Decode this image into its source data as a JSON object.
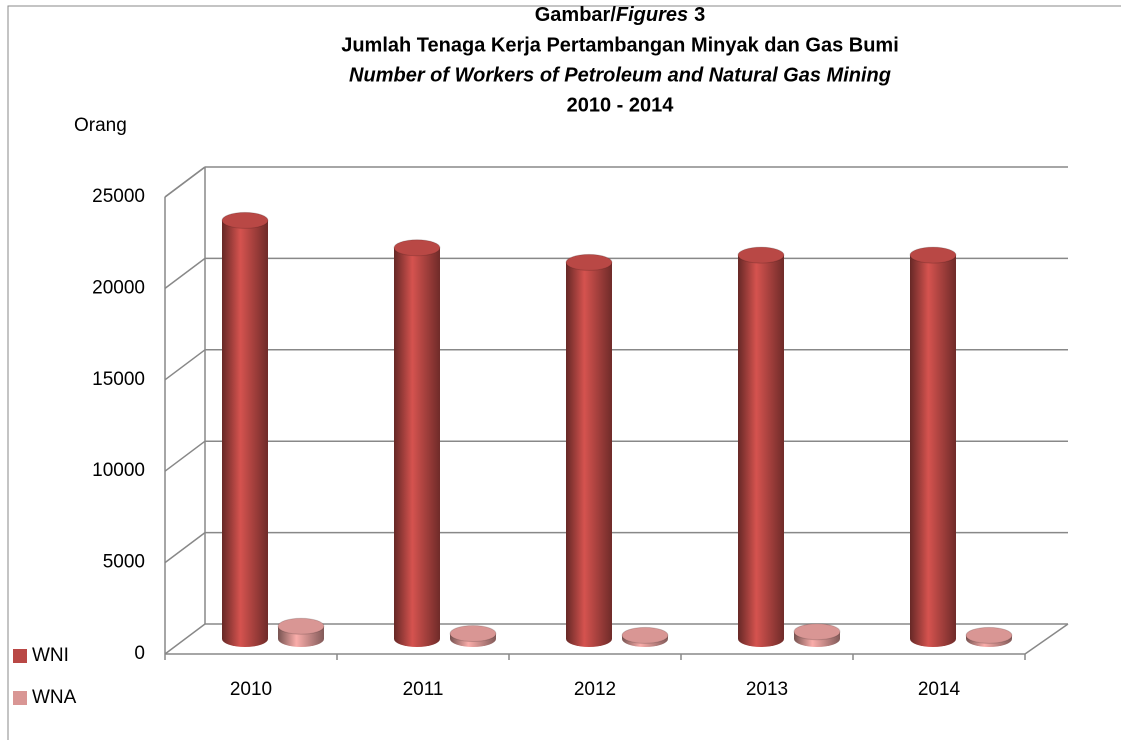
{
  "chart_data": {
    "type": "bar3d",
    "title": [
      "Gambar/",
      "Figures",
      "3"
    ],
    "subtitle": [
      "Jumlah Tenaga Kerja Pertambangan Minyak dan Gas Bumi",
      "Number of Workers of Petroleum and Natural Gas Mining",
      "2010 - 2014"
    ],
    "y_label": "Orang",
    "categories": [
      "2010",
      "2011",
      "2012",
      "2013",
      "2014"
    ],
    "series": [
      {
        "name": "WNI",
        "color": "#b94845",
        "values": [
          22900,
          21400,
          20600,
          21000,
          21000
        ]
      },
      {
        "name": "WNA",
        "color": "#d99694",
        "values": [
          700,
          300,
          200,
          400,
          200
        ]
      }
    ],
    "ylim": [
      0,
      25000
    ],
    "yticks": [
      0,
      5000,
      10000,
      15000,
      20000,
      25000
    ],
    "grid": true
  }
}
